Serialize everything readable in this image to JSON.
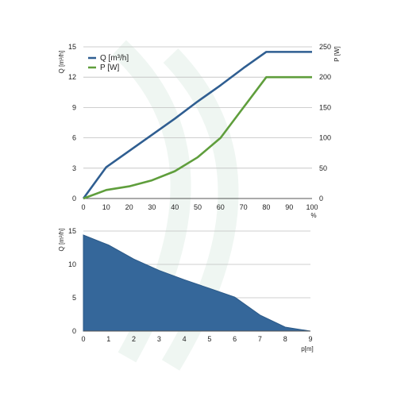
{
  "chart_data": [
    {
      "type": "line",
      "x": [
        0,
        10,
        20,
        30,
        40,
        50,
        60,
        70,
        80,
        90,
        100
      ],
      "xlabel": "%",
      "xlim": [
        0,
        100
      ],
      "x_ticks": [
        "0",
        "10",
        "20",
        "30",
        "40",
        "50",
        "60",
        "70",
        "80",
        "90",
        "100"
      ],
      "ylabel": "Q [m³/h]",
      "ylim": [
        0,
        15
      ],
      "y_ticks": [
        "0",
        "3",
        "6",
        "9",
        "12",
        "15"
      ],
      "y2label": "P [W]",
      "y2lim": [
        0,
        250
      ],
      "y2_ticks": [
        "0",
        "50",
        "100",
        "150",
        "200",
        "250"
      ],
      "grid": true,
      "legend_placement": "top-left",
      "series": [
        {
          "name": "Q [m³/h]",
          "axis": "left",
          "color": "#2f5e91",
          "values": [
            0,
            3.1,
            4.7,
            6.3,
            7.9,
            9.6,
            11.2,
            12.9,
            14.5,
            14.5,
            14.5
          ]
        },
        {
          "name": "P [W]",
          "axis": "right",
          "color": "#5f9e3c",
          "values": [
            0,
            14,
            20,
            30,
            45,
            68,
            100,
            150,
            200,
            200,
            200
          ]
        }
      ]
    },
    {
      "type": "area",
      "x": [
        0,
        1,
        2,
        3,
        4,
        5,
        6,
        7,
        8,
        9
      ],
      "values": [
        14.4,
        12.9,
        10.8,
        9.1,
        7.7,
        6.4,
        5.1,
        2.4,
        0.6,
        0
      ],
      "xlabel": "p[m]",
      "xlim": [
        0,
        9
      ],
      "x_ticks": [
        "0",
        "1",
        "2",
        "3",
        "4",
        "5",
        "6",
        "7",
        "8",
        "9"
      ],
      "ylabel": "Q [m³/h]",
      "ylim": [
        0,
        15
      ],
      "y_ticks": [
        "0",
        "5",
        "10",
        "15"
      ],
      "grid": true,
      "color": "#35679a"
    }
  ]
}
